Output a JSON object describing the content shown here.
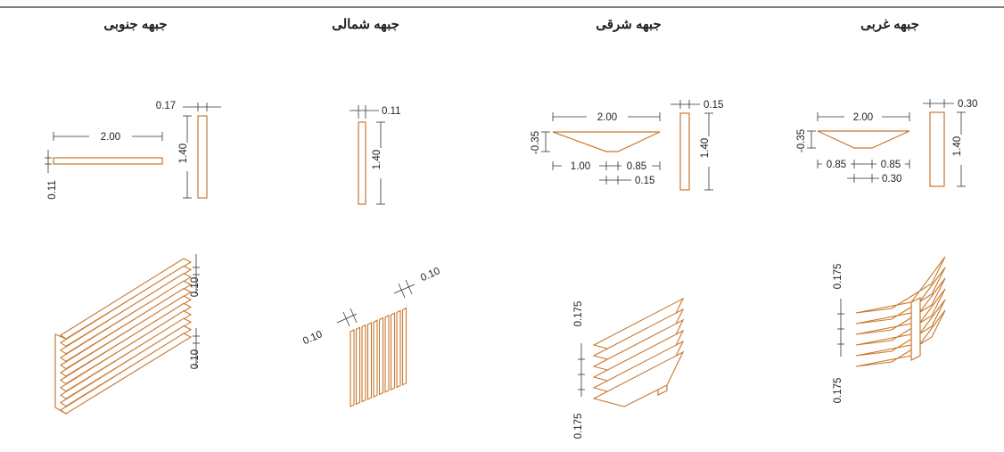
{
  "headers": {
    "south": "جبهه جنوبی",
    "north": "جبهه شمالی",
    "east": "جبهه شرقی",
    "west": "جبهه غربی"
  },
  "south": {
    "width": "2.00",
    "height": "1.40",
    "thickness_a": "0.17",
    "thickness_b": "0.11",
    "spacing_a": "0.10",
    "spacing_b": "0.10"
  },
  "north": {
    "thickness": "0.11",
    "height": "1.40",
    "spacing_a": "0.10",
    "spacing_b": "0.10"
  },
  "east": {
    "width": "2.00",
    "depth": "-0.35",
    "part_a": "1.00",
    "part_b": "0.85",
    "part_c": "0.15",
    "height": "1.40",
    "thickness": "0.15",
    "spacing_a": "0.175",
    "spacing_b": "0.175"
  },
  "west": {
    "width": "2.00",
    "depth": "-0.35",
    "part_a": "0.85",
    "part_b": "0.85",
    "part_c": "0.30",
    "height": "1.40",
    "thickness": "0.30",
    "spacing_a": "0.175",
    "spacing_b": "0.175"
  },
  "colors": {
    "shade": "#c8782f",
    "dimension": "#333333"
  }
}
